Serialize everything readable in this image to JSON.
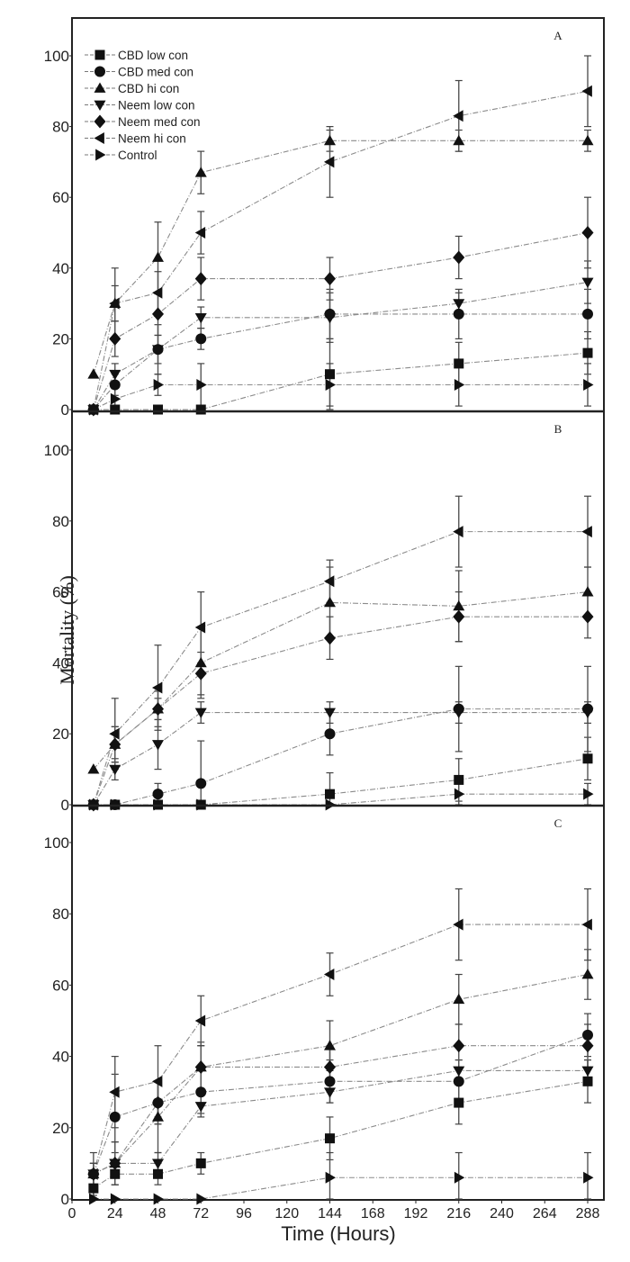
{
  "chart_data": {
    "type": "line",
    "title": "",
    "xlabel": "Time (Hours)",
    "ylabel": "Mortality (%)",
    "xlim": [
      0,
      300
    ],
    "ylim": [
      0,
      110
    ],
    "x_ticks": [
      0,
      24,
      48,
      72,
      96,
      120,
      144,
      168,
      192,
      216,
      240,
      264,
      288
    ],
    "y_ticks": [
      0,
      20,
      40,
      60,
      80,
      100
    ],
    "grid": false,
    "legend_position": "upper-left (panel A)",
    "x": [
      12,
      24,
      48,
      72,
      144,
      216,
      288
    ],
    "legend": [
      {
        "name": "CBD low con",
        "marker": "square"
      },
      {
        "name": "CBD med con",
        "marker": "circle"
      },
      {
        "name": "CBD hi con",
        "marker": "triangle-up"
      },
      {
        "name": "Neem low con",
        "marker": "triangle-down"
      },
      {
        "name": "Neem med con",
        "marker": "diamond"
      },
      {
        "name": "Neem hi con",
        "marker": "triangle-left"
      },
      {
        "name": "Control",
        "marker": "triangle-right"
      }
    ],
    "panels": [
      {
        "label": "A",
        "series": [
          {
            "name": "CBD low con",
            "values": [
              0,
              0,
              0,
              0,
              10,
              13,
              16
            ],
            "errors": [
              0,
              0,
              0,
              0,
              10,
              6,
              6
            ]
          },
          {
            "name": "CBD med con",
            "values": [
              0,
              7,
              17,
              20,
              27,
              27,
              27
            ],
            "errors": [
              0,
              3,
              4,
              3,
              7,
              7,
              7
            ]
          },
          {
            "name": "CBD hi con",
            "values": [
              10,
              30,
              43,
              67,
              76,
              76,
              76
            ],
            "errors": [
              0,
              10,
              10,
              6,
              3,
              3,
              3
            ]
          },
          {
            "name": "Neem low con",
            "values": [
              0,
              10,
              17,
              26,
              26,
              30,
              36
            ],
            "errors": [
              0,
              3,
              7,
              3,
              7,
              3,
              6
            ]
          },
          {
            "name": "Neem med con",
            "values": [
              0,
              20,
              27,
              37,
              37,
              43,
              50
            ],
            "errors": [
              0,
              5,
              6,
              6,
              6,
              6,
              10
            ]
          },
          {
            "name": "Neem hi con",
            "values": [
              0,
              30,
              33,
              50,
              70,
              83,
              90
            ],
            "errors": [
              0,
              5,
              6,
              6,
              10,
              10,
              10
            ]
          },
          {
            "name": "Control",
            "values": [
              0,
              3,
              7,
              7,
              7,
              7,
              7
            ],
            "errors": [
              0,
              3,
              3,
              6,
              6,
              6,
              6
            ]
          }
        ]
      },
      {
        "label": "B",
        "series": [
          {
            "name": "CBD low con",
            "values": [
              0,
              0,
              0,
              0,
              3,
              7,
              13
            ],
            "errors": [
              0,
              0,
              0,
              0,
              6,
              6,
              6
            ]
          },
          {
            "name": "CBD med con",
            "values": [
              0,
              0,
              3,
              6,
              20,
              27,
              27
            ],
            "errors": [
              0,
              0,
              3,
              12,
              6,
              12,
              12
            ]
          },
          {
            "name": "CBD hi con",
            "values": [
              10,
              17,
              27,
              40,
              57,
              56,
              60
            ],
            "errors": [
              0,
              5,
              5,
              10,
              10,
              10,
              7
            ]
          },
          {
            "name": "Neem low con",
            "values": [
              0,
              10,
              17,
              26,
              26,
              26,
              26
            ],
            "errors": [
              0,
              3,
              7,
              3,
              3,
              3,
              3
            ]
          },
          {
            "name": "Neem med con",
            "values": [
              0,
              17,
              27,
              37,
              47,
              53,
              53
            ],
            "errors": [
              0,
              5,
              3,
              6,
              6,
              7,
              6
            ]
          },
          {
            "name": "Neem hi con",
            "values": [
              0,
              20,
              33,
              50,
              63,
              77,
              77
            ],
            "errors": [
              0,
              10,
              12,
              10,
              6,
              10,
              10
            ]
          },
          {
            "name": "Control",
            "values": [
              0,
              0,
              0,
              0,
              0,
              3,
              3
            ],
            "errors": [
              0,
              0,
              0,
              0,
              0,
              3,
              3
            ]
          }
        ]
      },
      {
        "label": "C",
        "series": [
          {
            "name": "CBD low con",
            "values": [
              3,
              7,
              7,
              10,
              17,
              27,
              33
            ],
            "errors": [
              3,
              3,
              3,
              3,
              6,
              6,
              6
            ]
          },
          {
            "name": "CBD med con",
            "values": [
              7,
              23,
              27,
              30,
              33,
              33,
              46
            ],
            "errors": [
              3,
              12,
              6,
              6,
              6,
              6,
              6
            ]
          },
          {
            "name": "CBD hi con",
            "values": [
              7,
              10,
              23,
              37,
              43,
              56,
              63
            ],
            "errors": [
              6,
              6,
              10,
              7,
              7,
              7,
              7
            ]
          },
          {
            "name": "Neem low con",
            "values": [
              7,
              10,
              10,
              26,
              30,
              36,
              36
            ],
            "errors": [
              3,
              3,
              3,
              3,
              3,
              3,
              3
            ]
          },
          {
            "name": "Neem med con",
            "values": [
              7,
              10,
              27,
              37,
              37,
              43,
              43
            ],
            "errors": [
              3,
              6,
              6,
              6,
              6,
              6,
              6
            ]
          },
          {
            "name": "Neem hi con",
            "values": [
              7,
              30,
              33,
              50,
              63,
              77,
              77
            ],
            "errors": [
              3,
              10,
              10,
              7,
              6,
              10,
              10
            ]
          },
          {
            "name": "Control",
            "values": [
              0,
              0,
              0,
              0,
              6,
              6,
              6
            ],
            "errors": [
              0,
              0,
              0,
              0,
              7,
              7,
              7
            ]
          }
        ]
      }
    ]
  }
}
